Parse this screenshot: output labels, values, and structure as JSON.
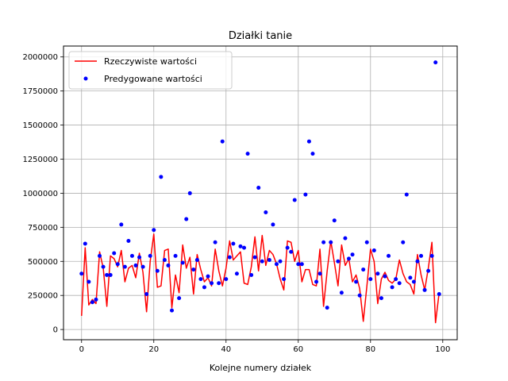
{
  "chart_data": {
    "type": "line",
    "title": "Działki tanie",
    "xlabel": "Kolejne numery działek",
    "ylabel": "",
    "xlim": [
      -5,
      104
    ],
    "ylim": [
      -75000,
      2080000
    ],
    "xticks": [
      0,
      20,
      40,
      60,
      80,
      100
    ],
    "yticks": [
      0,
      250000,
      500000,
      750000,
      1000000,
      1250000,
      1500000,
      1750000,
      2000000
    ],
    "xtick_labels": [
      "0",
      "20",
      "40",
      "60",
      "80",
      "100"
    ],
    "ytick_labels": [
      "0",
      "250000",
      "500000",
      "750000",
      "1000000",
      "1250000",
      "1500000",
      "1750000",
      "2000000"
    ],
    "grid": true,
    "legend_position": "top-left",
    "colors": {
      "actual": "#ff0000",
      "predicted": "#0000ff",
      "grid": "#b0b0b0"
    },
    "x": [
      0,
      1,
      2,
      3,
      4,
      5,
      6,
      7,
      8,
      9,
      10,
      11,
      12,
      13,
      14,
      15,
      16,
      17,
      18,
      19,
      20,
      21,
      22,
      23,
      24,
      25,
      26,
      27,
      28,
      29,
      30,
      31,
      32,
      33,
      34,
      35,
      36,
      37,
      38,
      39,
      40,
      41,
      42,
      43,
      44,
      45,
      46,
      47,
      48,
      49,
      50,
      51,
      52,
      53,
      54,
      55,
      56,
      57,
      58,
      59,
      60,
      61,
      62,
      63,
      64,
      65,
      66,
      67,
      68,
      69,
      70,
      71,
      72,
      73,
      74,
      75,
      76,
      77,
      78,
      79,
      80,
      81,
      82,
      83,
      84,
      85,
      86,
      87,
      88,
      89,
      90,
      91,
      92,
      93,
      94,
      95,
      96,
      97,
      98,
      99
    ],
    "series": [
      {
        "name": "Rzeczywiste wartości",
        "style": "line",
        "values": [
          100000,
          600000,
          180000,
          220000,
          190000,
          570000,
          450000,
          170000,
          540000,
          520000,
          460000,
          580000,
          350000,
          450000,
          470000,
          380000,
          560000,
          420000,
          130000,
          500000,
          700000,
          310000,
          320000,
          580000,
          590000,
          160000,
          400000,
          270000,
          620000,
          450000,
          530000,
          260000,
          550000,
          440000,
          350000,
          380000,
          320000,
          590000,
          430000,
          320000,
          450000,
          650000,
          510000,
          540000,
          570000,
          340000,
          330000,
          460000,
          680000,
          430000,
          690000,
          470000,
          580000,
          550000,
          480000,
          370000,
          290000,
          650000,
          640000,
          500000,
          580000,
          350000,
          440000,
          440000,
          330000,
          320000,
          590000,
          170000,
          430000,
          650000,
          490000,
          320000,
          620000,
          470000,
          520000,
          350000,
          400000,
          300000,
          60000,
          320000,
          590000,
          500000,
          190000,
          370000,
          420000,
          360000,
          340000,
          370000,
          510000,
          410000,
          350000,
          330000,
          260000,
          550000,
          400000,
          290000,
          450000,
          640000,
          50000,
          270000
        ]
      },
      {
        "name": "Predygowane wartości",
        "style": "points",
        "values": [
          410000,
          630000,
          350000,
          200000,
          220000,
          540000,
          460000,
          400000,
          400000,
          560000,
          480000,
          770000,
          460000,
          650000,
          540000,
          470000,
          530000,
          460000,
          260000,
          540000,
          730000,
          430000,
          1120000,
          510000,
          470000,
          140000,
          540000,
          230000,
          490000,
          810000,
          1000000,
          440000,
          510000,
          370000,
          310000,
          390000,
          340000,
          640000,
          340000,
          1380000,
          370000,
          530000,
          630000,
          410000,
          610000,
          600000,
          1290000,
          400000,
          530000,
          1040000,
          500000,
          860000,
          510000,
          770000,
          480000,
          500000,
          370000,
          600000,
          570000,
          950000,
          480000,
          480000,
          990000,
          1380000,
          1290000,
          350000,
          410000,
          640000,
          160000,
          640000,
          800000,
          500000,
          270000,
          670000,
          520000,
          550000,
          350000,
          250000,
          440000,
          640000,
          370000,
          580000,
          410000,
          230000,
          390000,
          540000,
          310000,
          370000,
          340000,
          640000,
          990000,
          380000,
          350000,
          500000,
          540000,
          290000,
          430000,
          540000,
          1960000,
          260000
        ]
      }
    ]
  }
}
